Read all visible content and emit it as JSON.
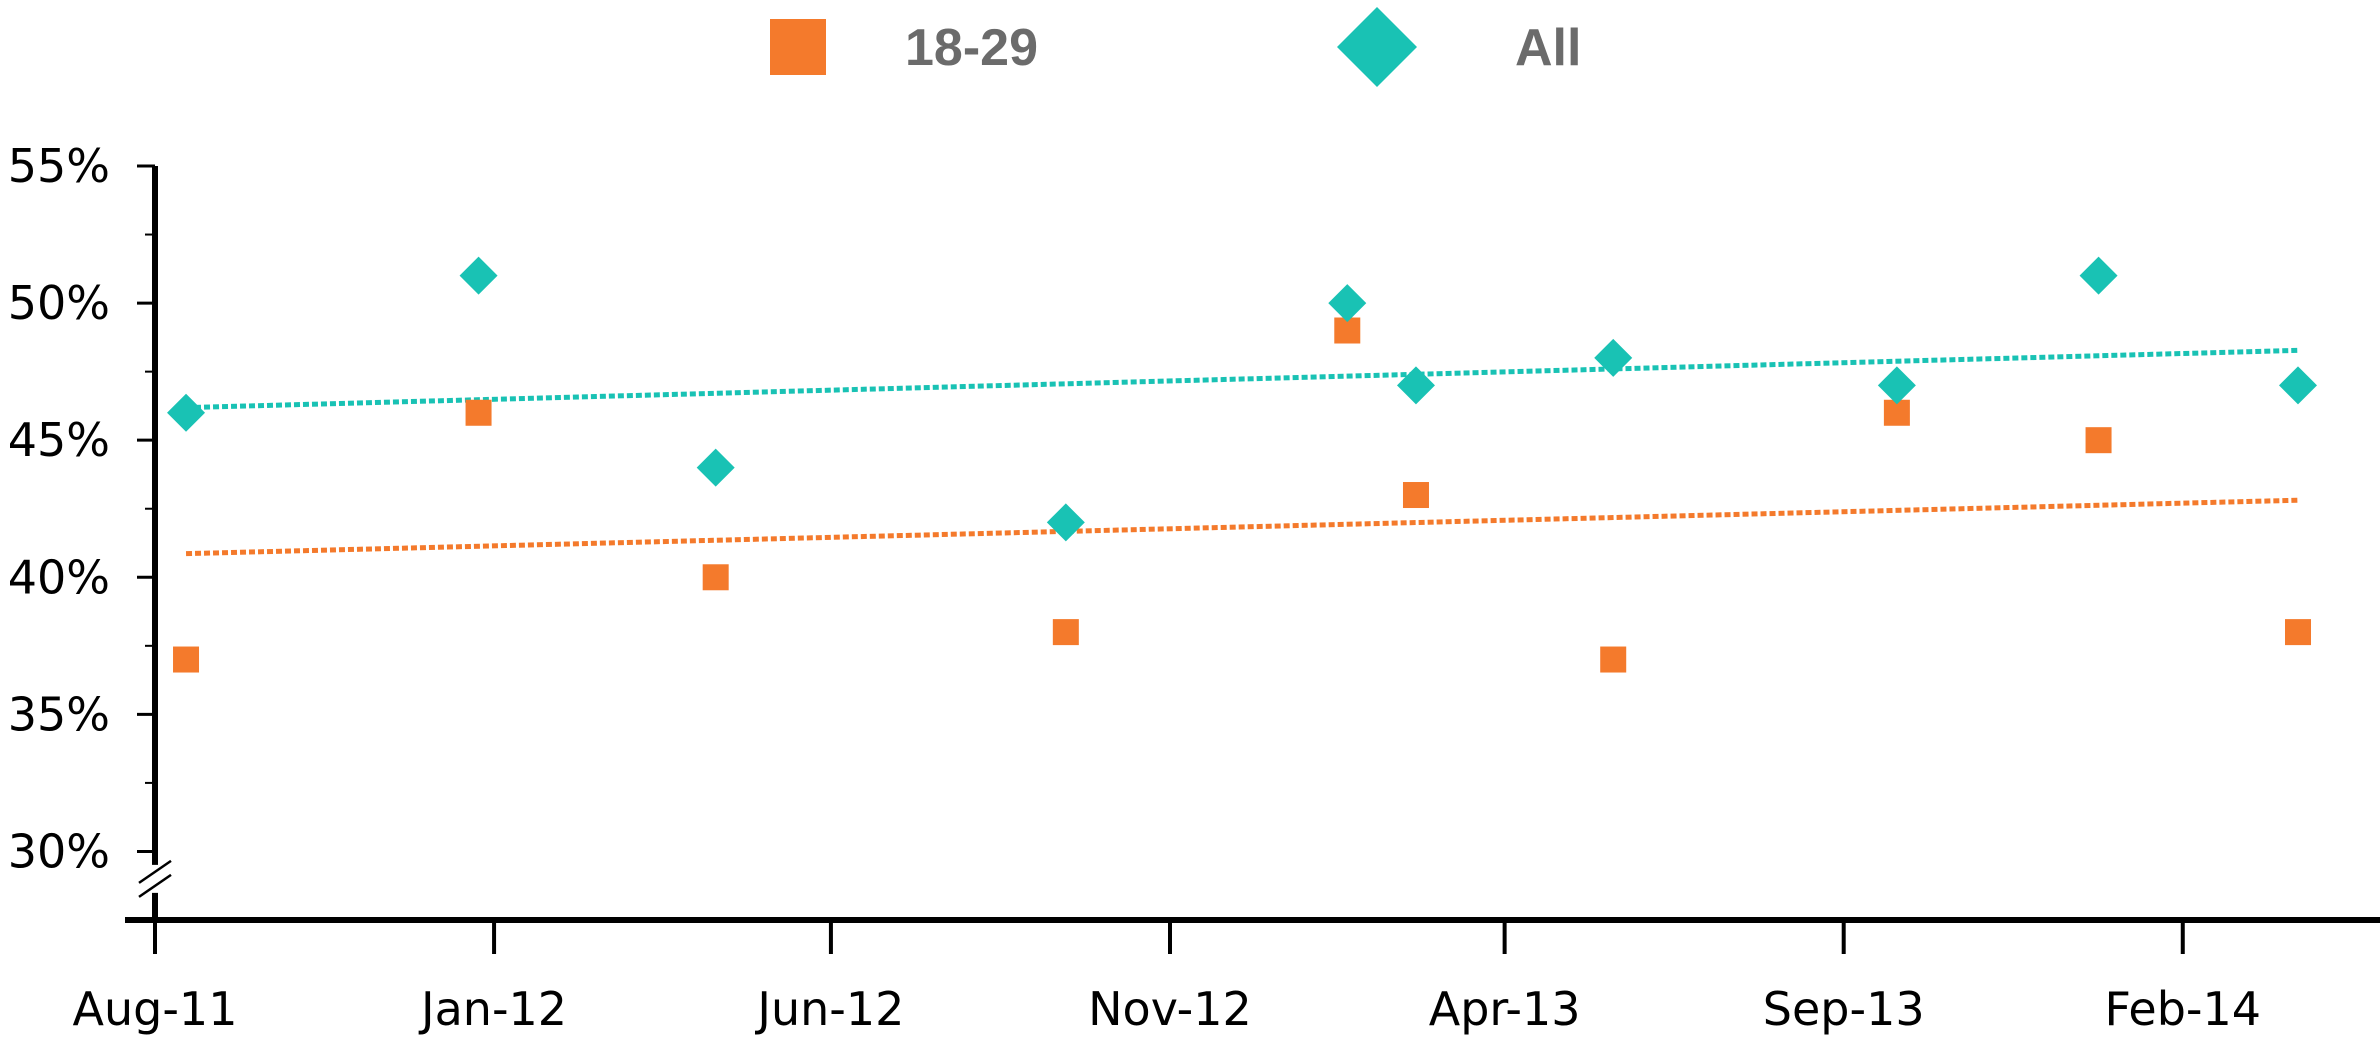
{
  "chart_data": {
    "type": "scatter",
    "title": "",
    "xlabel": "",
    "ylabel": "",
    "x_tick_labels": [
      "Aug-11",
      "Jan-12",
      "Jun-12",
      "Nov-12",
      "Apr-13",
      "Sep-13",
      "Feb-14"
    ],
    "x_ticks": [
      "2011-08-01",
      "2012-01-01",
      "2012-06-01",
      "2012-11-01",
      "2013-04-01",
      "2013-09-01",
      "2014-02-01"
    ],
    "xlim": [
      "2011-08-01",
      "2014-05-01"
    ],
    "y_tick_labels": [
      "30%",
      "35%",
      "40%",
      "45%",
      "50%",
      "55%"
    ],
    "y_ticks": [
      30,
      35,
      40,
      45,
      50,
      55
    ],
    "ylim": [
      27.5,
      55
    ],
    "y_axis_break": true,
    "grid": false,
    "legend_position": "top-center",
    "series": [
      {
        "name": "18-29",
        "marker": "square",
        "color": "#F47A2C",
        "trendline": true,
        "points": [
          {
            "x": "2011-08-15",
            "y": 37
          },
          {
            "x": "2011-12-25",
            "y": 46
          },
          {
            "x": "2012-04-10",
            "y": 40
          },
          {
            "x": "2012-09-15",
            "y": 38
          },
          {
            "x": "2013-01-20",
            "y": 49
          },
          {
            "x": "2013-02-20",
            "y": 43
          },
          {
            "x": "2013-05-20",
            "y": 37
          },
          {
            "x": "2013-09-25",
            "y": 46
          },
          {
            "x": "2013-12-25",
            "y": 45
          },
          {
            "x": "2014-03-25",
            "y": 38
          }
        ]
      },
      {
        "name": "All",
        "marker": "diamond",
        "color": "#19C2B4",
        "trendline": true,
        "points": [
          {
            "x": "2011-08-15",
            "y": 46
          },
          {
            "x": "2011-12-25",
            "y": 51
          },
          {
            "x": "2012-04-10",
            "y": 44
          },
          {
            "x": "2012-09-15",
            "y": 42
          },
          {
            "x": "2013-01-20",
            "y": 50
          },
          {
            "x": "2013-02-20",
            "y": 47
          },
          {
            "x": "2013-05-20",
            "y": 48
          },
          {
            "x": "2013-09-25",
            "y": 47
          },
          {
            "x": "2013-12-25",
            "y": 51
          },
          {
            "x": "2014-03-25",
            "y": 47
          }
        ]
      }
    ]
  }
}
